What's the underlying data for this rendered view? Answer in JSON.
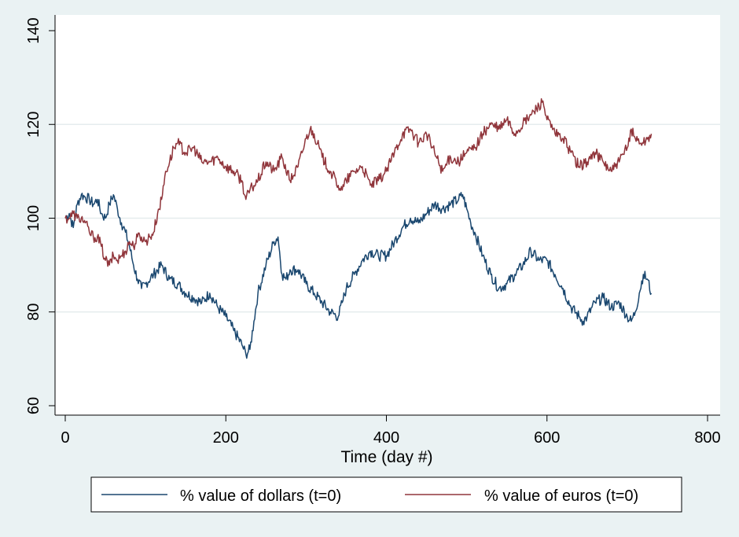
{
  "chart_data": {
    "type": "line",
    "title": "",
    "xlabel": "Time (day #)",
    "ylabel": "",
    "xlim": [
      0,
      800
    ],
    "ylim": [
      60,
      140
    ],
    "x_ticks": [
      "0",
      "200",
      "400",
      "600",
      "800"
    ],
    "y_ticks": [
      "60",
      "80",
      "100",
      "120",
      "140"
    ],
    "grid": "horizontal",
    "legend_position": "bottom",
    "series": [
      {
        "name": "% value of dollars (t=0)",
        "color": "#1a476f",
        "x": [
          0,
          5,
          10,
          15,
          20,
          25,
          30,
          35,
          40,
          45,
          50,
          55,
          60,
          65,
          70,
          75,
          80,
          85,
          90,
          95,
          100,
          110,
          120,
          130,
          140,
          150,
          160,
          170,
          180,
          190,
          200,
          210,
          220,
          225,
          230,
          235,
          240,
          250,
          260,
          265,
          270,
          275,
          280,
          290,
          300,
          310,
          320,
          330,
          340,
          345,
          350,
          360,
          370,
          380,
          390,
          400,
          410,
          420,
          430,
          440,
          450,
          460,
          470,
          480,
          490,
          495,
          500,
          505,
          510,
          520,
          530,
          540,
          550,
          560,
          570,
          580,
          590,
          600,
          610,
          620,
          630,
          640,
          645,
          650,
          660,
          670,
          680,
          690,
          700,
          705,
          710,
          715,
          720,
          725,
          730
        ],
        "y": [
          100,
          101,
          98,
          103,
          105,
          104.5,
          104,
          103,
          104,
          101,
          100,
          103,
          105,
          102,
          99,
          97,
          94,
          90,
          87,
          85,
          86,
          88,
          90,
          87,
          86,
          84,
          83,
          82,
          84,
          81,
          79,
          76,
          73,
          71,
          72,
          78,
          84,
          90,
          95,
          96,
          88,
          87,
          89,
          89,
          86,
          84,
          82,
          80,
          79,
          82,
          85,
          88,
          91,
          93,
          92,
          92,
          95,
          98,
          100,
          99,
          101,
          103,
          102,
          103,
          104,
          105,
          102,
          99,
          97,
          92,
          88,
          85,
          86,
          88,
          90,
          93,
          91,
          91,
          88,
          85,
          81,
          79,
          78,
          79,
          82,
          83,
          81,
          82,
          79,
          78,
          80,
          84,
          88,
          87,
          84
        ]
      },
      {
        "name": "% value of euros (t=0)",
        "color": "#90353b",
        "x": [
          0,
          5,
          10,
          15,
          20,
          25,
          30,
          35,
          40,
          45,
          50,
          55,
          60,
          65,
          70,
          75,
          80,
          85,
          90,
          95,
          100,
          105,
          110,
          115,
          120,
          125,
          130,
          135,
          140,
          150,
          160,
          170,
          180,
          190,
          200,
          210,
          220,
          225,
          230,
          240,
          250,
          260,
          270,
          280,
          290,
          300,
          305,
          310,
          320,
          330,
          340,
          345,
          350,
          360,
          370,
          380,
          390,
          400,
          410,
          420,
          430,
          440,
          450,
          460,
          470,
          480,
          490,
          500,
          510,
          520,
          530,
          540,
          550,
          560,
          570,
          580,
          590,
          595,
          600,
          610,
          620,
          630,
          640,
          650,
          660,
          670,
          680,
          690,
          700,
          705,
          710,
          720,
          730
        ],
        "y": [
          100,
          100,
          101,
          100,
          100,
          99,
          97,
          96,
          96,
          94,
          91,
          90,
          92,
          91,
          92,
          93,
          95,
          94,
          96,
          96,
          95,
          96,
          97,
          101,
          104,
          110,
          112,
          115,
          116,
          114,
          115,
          112,
          112,
          113,
          111,
          110,
          108,
          104,
          106,
          108,
          112,
          110,
          113,
          108,
          111,
          117,
          119,
          118,
          113,
          110,
          107,
          106,
          108,
          110,
          111,
          107,
          108,
          110,
          114,
          118,
          119,
          116,
          118,
          114,
          110,
          113,
          112,
          114,
          115,
          118,
          120,
          119,
          121,
          118,
          120,
          122,
          124,
          125,
          121,
          118,
          117,
          114,
          111,
          112,
          114,
          112,
          110,
          112,
          115,
          119,
          117,
          116,
          118
        ]
      }
    ]
  }
}
